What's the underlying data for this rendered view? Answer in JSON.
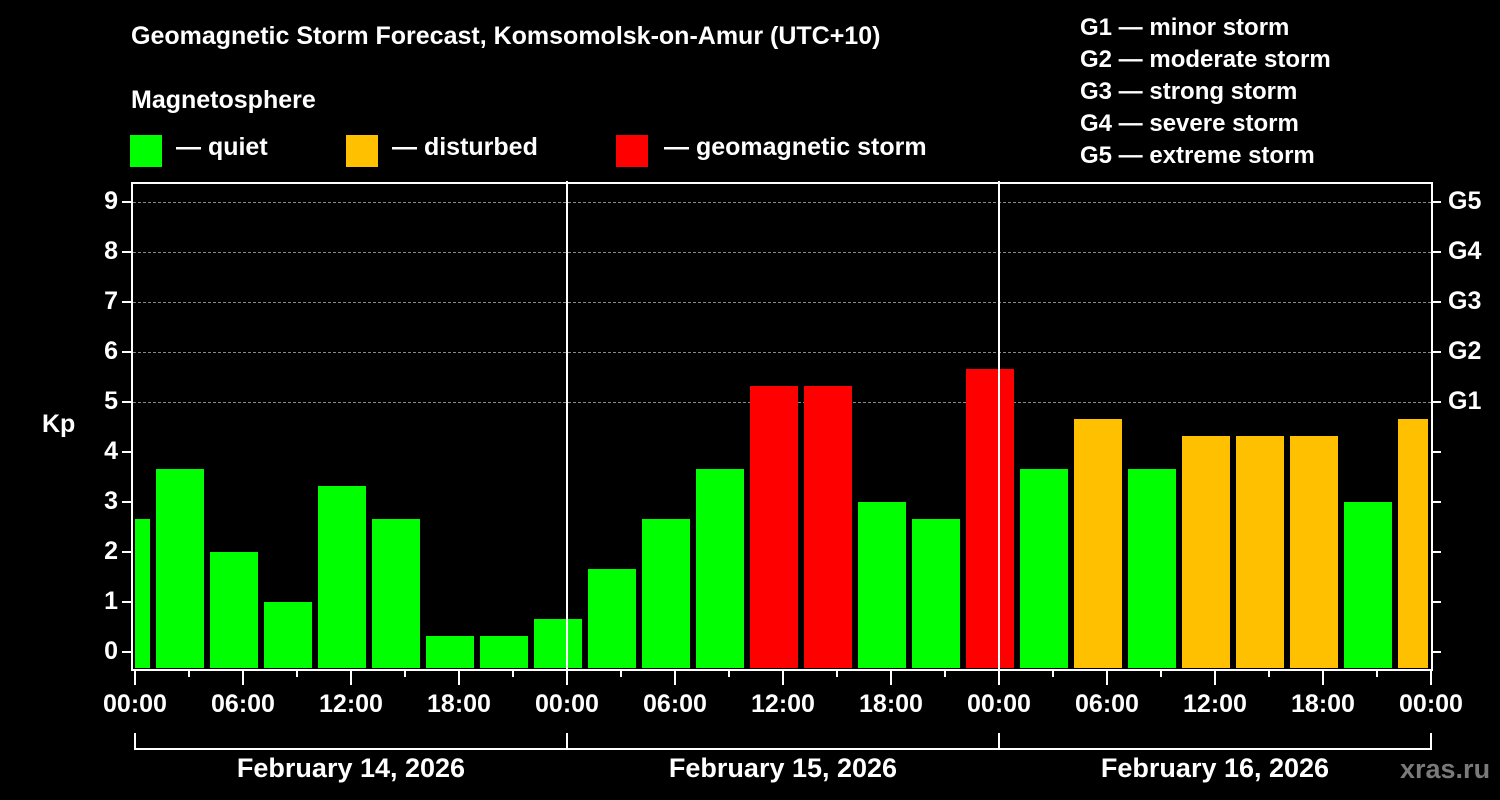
{
  "header": {
    "title": "Geomagnetic Storm Forecast, Komsomolsk-on-Amur (UTC+10)",
    "subtitle": "Magnetosphere"
  },
  "legend": [
    {
      "label": "— quiet",
      "color": "#00ff00"
    },
    {
      "label": "— disturbed",
      "color": "#ffc000"
    },
    {
      "label": "— geomagnetic storm",
      "color": "#ff0000"
    }
  ],
  "g_scale": [
    {
      "label": "G1 — minor storm"
    },
    {
      "label": "G2 — moderate storm"
    },
    {
      "label": "G3 — strong storm"
    },
    {
      "label": "G4 — severe storm"
    },
    {
      "label": "G5 — extreme storm"
    }
  ],
  "axes": {
    "ylabel": "Kp",
    "yticks": [
      "0",
      "1",
      "2",
      "3",
      "4",
      "5",
      "6",
      "7",
      "8",
      "9"
    ],
    "right_ticks": [
      {
        "label": "G1",
        "kp": 5
      },
      {
        "label": "G2",
        "kp": 6
      },
      {
        "label": "G3",
        "kp": 7
      },
      {
        "label": "G4",
        "kp": 8
      },
      {
        "label": "G5",
        "kp": 9
      }
    ],
    "xticks": [
      "00:00",
      "06:00",
      "12:00",
      "18:00",
      "00:00",
      "06:00",
      "12:00",
      "18:00",
      "00:00",
      "06:00",
      "12:00",
      "18:00",
      "00:00"
    ],
    "dates": [
      "February 14, 2026",
      "February 15, 2026",
      "February 16, 2026"
    ]
  },
  "watermark": "xras.ru",
  "colors": {
    "quiet": "#00ff00",
    "disturbed": "#ffc000",
    "storm": "#ff0000",
    "grid": "#888888"
  },
  "chart_data": {
    "type": "bar",
    "title": "Geomagnetic Storm Forecast, Komsomolsk-on-Amur (UTC+10)",
    "xlabel": "",
    "ylabel": "Kp",
    "ylim": [
      0,
      9
    ],
    "grid": true,
    "legend_position": "top",
    "legend": [
      "quiet",
      "disturbed",
      "geomagnetic storm"
    ],
    "x_ticks": [
      "00:00",
      "06:00",
      "12:00",
      "18:00",
      "00:00",
      "06:00",
      "12:00",
      "18:00",
      "00:00",
      "06:00",
      "12:00",
      "18:00",
      "00:00"
    ],
    "date_labels": [
      "February 14, 2026",
      "February 15, 2026",
      "February 16, 2026"
    ],
    "right_axis": {
      "G1": 5,
      "G2": 6,
      "G3": 7,
      "G4": 8,
      "G5": 9
    },
    "categories": [
      "Feb 14 00:00",
      "Feb 14 03:00",
      "Feb 14 06:00",
      "Feb 14 09:00",
      "Feb 14 12:00",
      "Feb 14 15:00",
      "Feb 14 18:00",
      "Feb 14 21:00",
      "Feb 15 00:00",
      "Feb 15 03:00",
      "Feb 15 06:00",
      "Feb 15 09:00",
      "Feb 15 12:00",
      "Feb 15 15:00",
      "Feb 15 18:00",
      "Feb 15 21:00",
      "Feb 16 00:00",
      "Feb 16 03:00",
      "Feb 16 06:00",
      "Feb 16 09:00",
      "Feb 16 12:00",
      "Feb 16 15:00",
      "Feb 16 18:00",
      "Feb 16 21:00",
      "Feb 17 00:00"
    ],
    "values": [
      2.67,
      3.67,
      2.0,
      1.0,
      3.33,
      2.67,
      0.33,
      0.33,
      0.67,
      1.67,
      2.67,
      3.67,
      5.33,
      5.33,
      3.0,
      2.67,
      5.67,
      3.67,
      4.67,
      3.67,
      4.33,
      4.33,
      4.33,
      3.0,
      4.67
    ],
    "status": [
      "quiet",
      "quiet",
      "quiet",
      "quiet",
      "quiet",
      "quiet",
      "quiet",
      "quiet",
      "quiet",
      "quiet",
      "quiet",
      "quiet",
      "storm",
      "storm",
      "quiet",
      "quiet",
      "storm",
      "quiet",
      "disturbed",
      "quiet",
      "disturbed",
      "disturbed",
      "disturbed",
      "quiet",
      "disturbed"
    ]
  }
}
